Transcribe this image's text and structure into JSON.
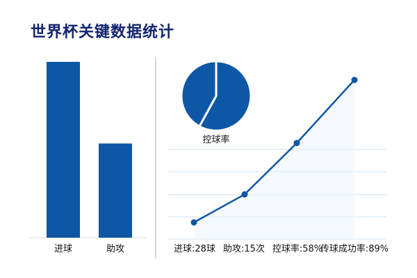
{
  "title": "世界杯关键数据统计",
  "colors": {
    "primary": "#0d57a6",
    "title": "#13246f",
    "grid": "#cfe0ef",
    "divider": "#9bb6d3"
  },
  "chart_data": [
    {
      "type": "bar",
      "categories": [
        "进球",
        "助攻"
      ],
      "values": [
        28,
        15
      ],
      "ylim": [
        0,
        28
      ]
    },
    {
      "type": "pie",
      "label": "控球率",
      "values": [
        58,
        42
      ]
    },
    {
      "type": "line",
      "categories": [
        "进球:28球",
        "助攻:15次",
        "控球率:58%",
        "传球成功率:89%"
      ],
      "values": [
        28,
        15,
        58,
        89
      ],
      "points_y": [
        28,
        40,
        62,
        89
      ]
    }
  ]
}
